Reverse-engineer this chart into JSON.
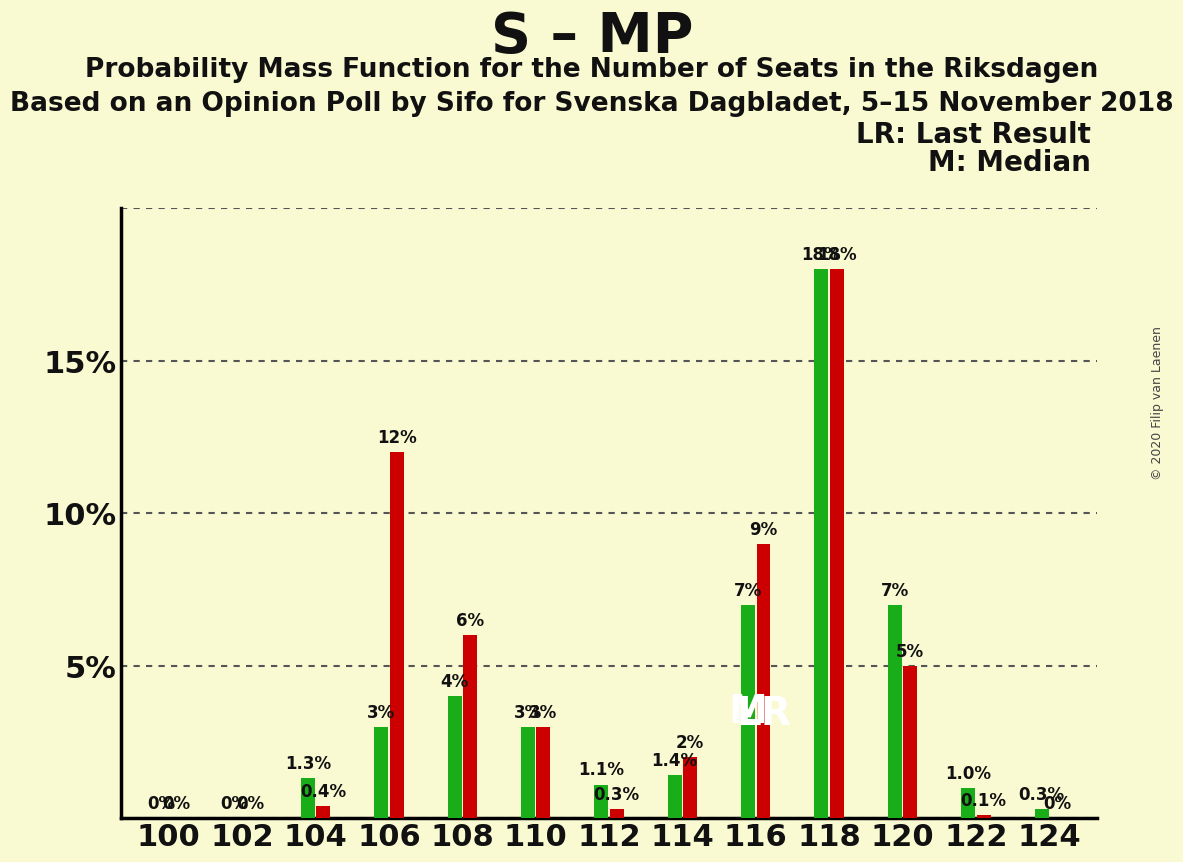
{
  "title": "S – MP",
  "subtitle1": "Probability Mass Function for the Number of Seats in the Riksdagen",
  "subtitle2": "Based on an Opinion Poll by Sifo for Svenska Dagbladet, 5–15 November 2018",
  "copyright": "© 2020 Filip van Laenen",
  "legend_lr": "LR: Last Result",
  "legend_m": "M: Median",
  "background_color": "#FAFAD2",
  "green_color": "#1AAD1A",
  "red_color": "#CC0000",
  "seats": [
    100,
    102,
    104,
    106,
    108,
    110,
    112,
    114,
    116,
    118,
    120,
    122,
    124
  ],
  "green_values": [
    0.0,
    0.0,
    1.3,
    3.0,
    4.0,
    3.0,
    1.1,
    1.4,
    7.0,
    18.0,
    7.0,
    1.0,
    0.3
  ],
  "red_values": [
    0.0,
    0.0,
    0.4,
    12.0,
    6.0,
    3.0,
    0.3,
    2.0,
    9.0,
    18.0,
    5.0,
    0.1,
    0.0
  ],
  "green_labels": [
    "0%",
    "0%",
    "1.3%",
    "3%",
    "4%",
    "3%",
    "1.1%",
    "1.4%",
    "7%",
    "18%",
    "7%",
    "1.0%",
    "0.3%"
  ],
  "red_labels": [
    "0%",
    "0%",
    "0.4%",
    "12%",
    "6%",
    "3%",
    "0.3%",
    "2%",
    "9%",
    "18%",
    "5%",
    "0.1%",
    "0%"
  ],
  "ylim": [
    0,
    20
  ],
  "ytick_vals": [
    0,
    5,
    10,
    15,
    20
  ],
  "ytick_labels": [
    "",
    "5%",
    "10%",
    "15%",
    ""
  ],
  "median_seat_idx": 8,
  "lr_seat_idx": 8,
  "median_label": "M",
  "lr_label": "LR",
  "label_fontsize": 12,
  "tick_fontsize": 22,
  "title_fontsize": 40,
  "sub1_fontsize": 19,
  "sub2_fontsize": 19,
  "legend_fontsize": 20
}
